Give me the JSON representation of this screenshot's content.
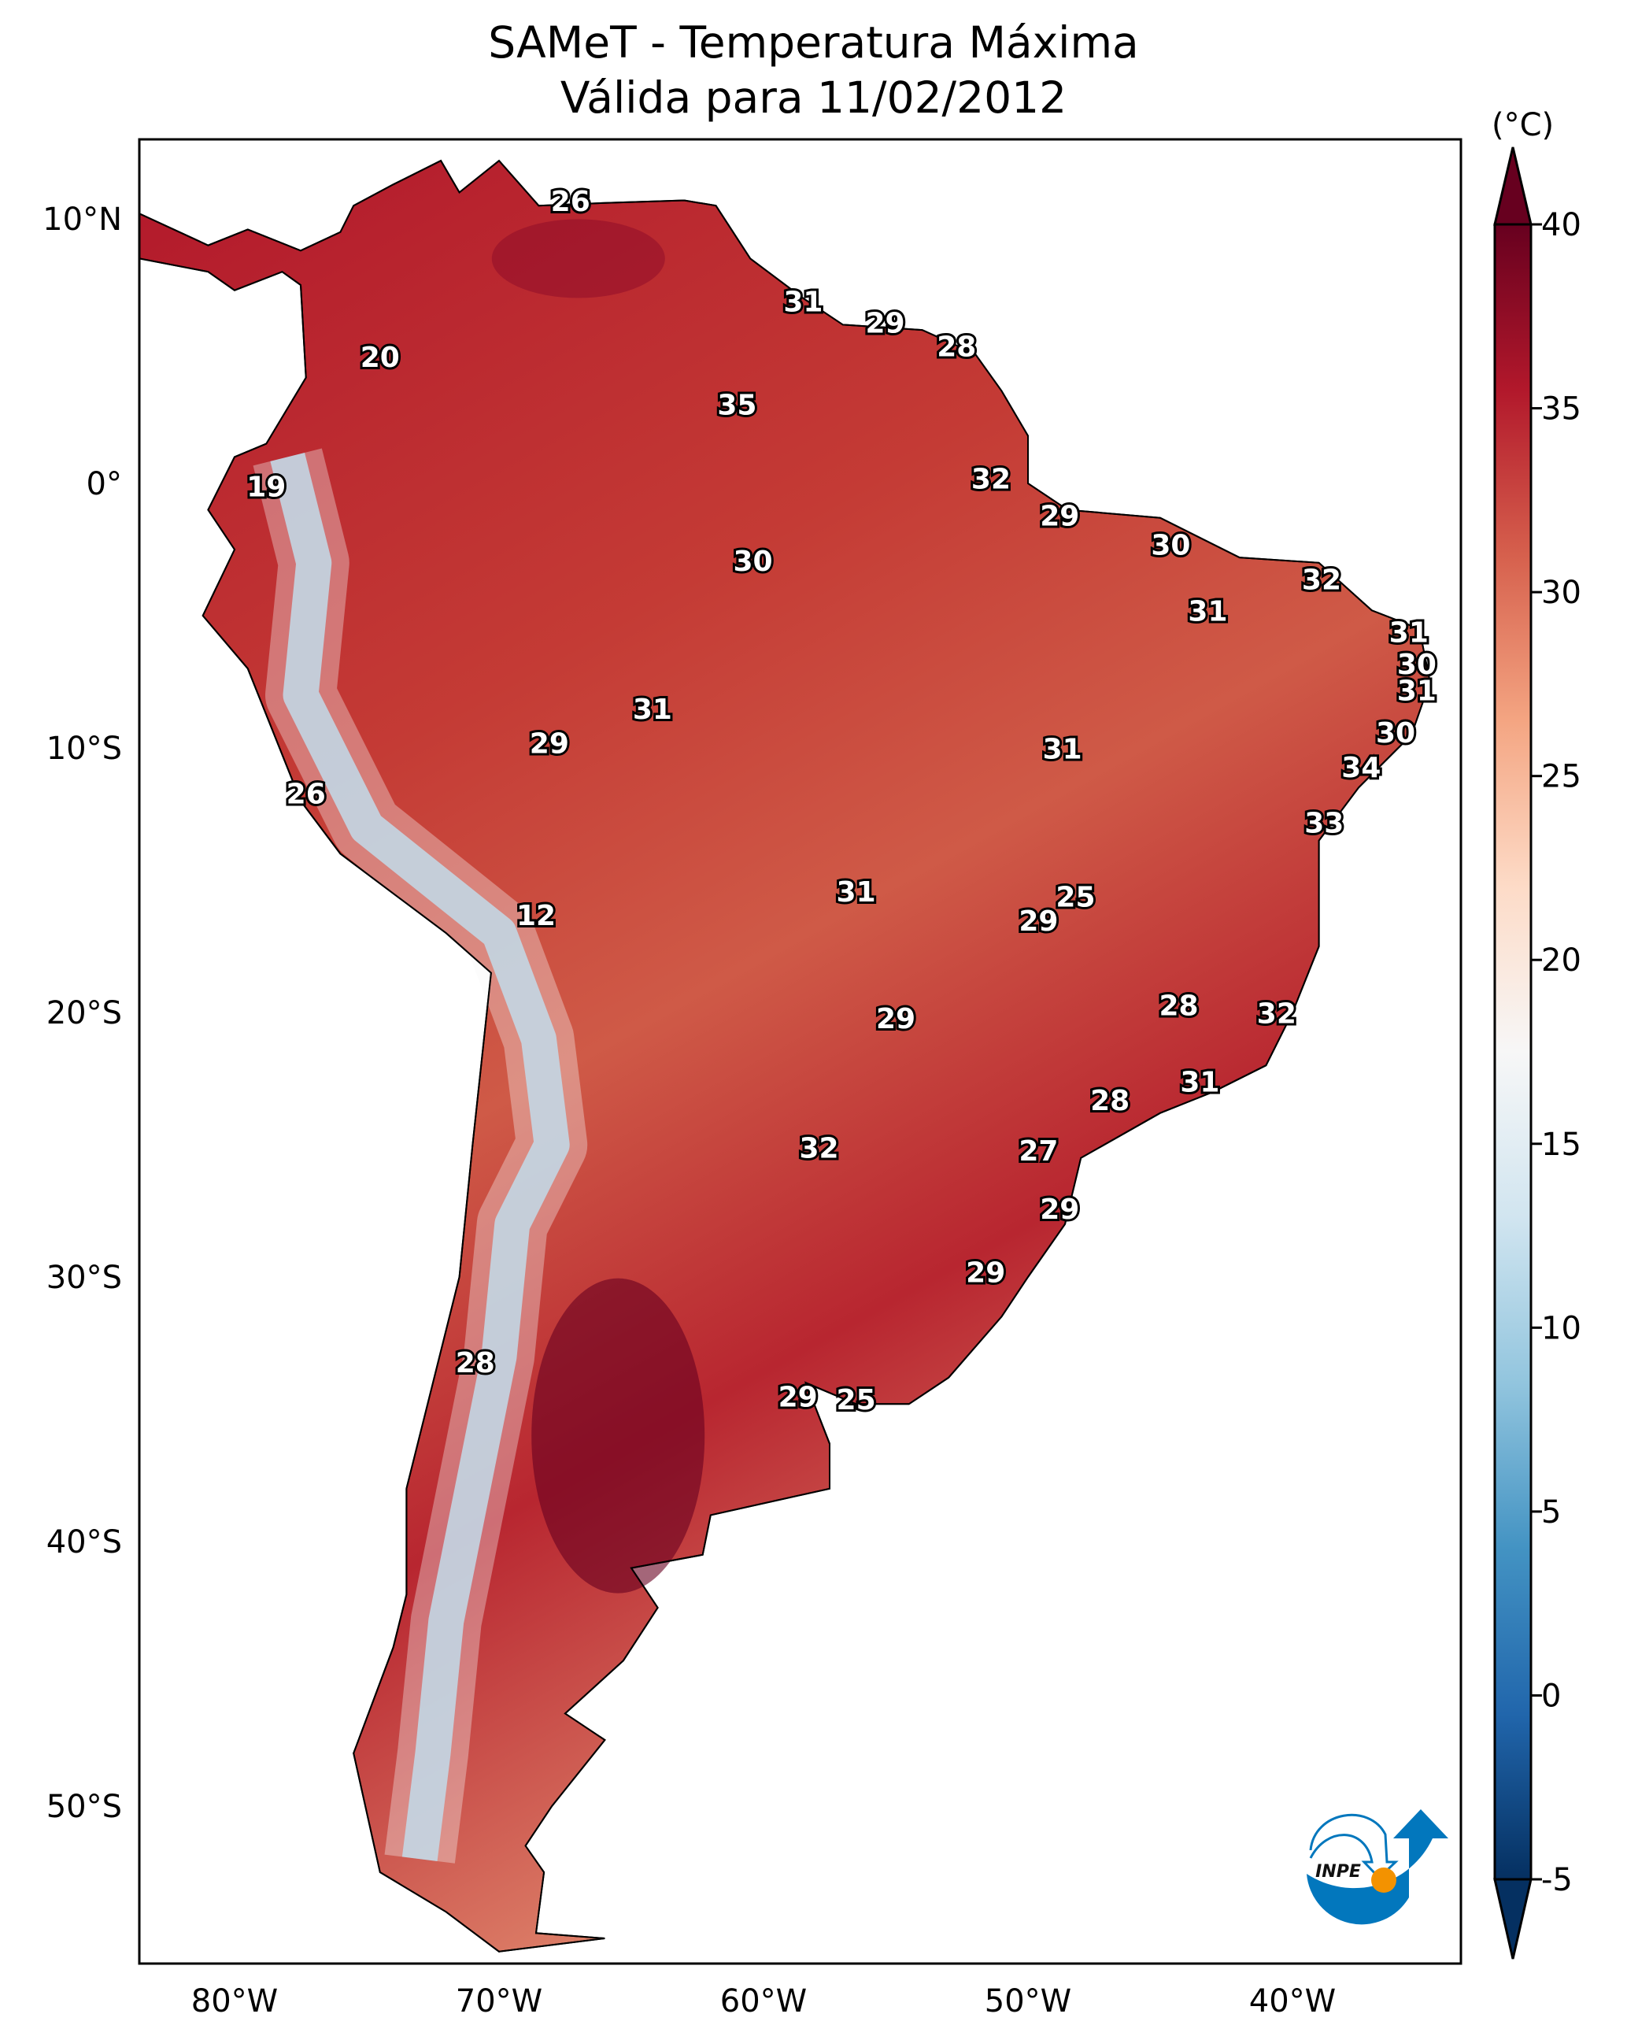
{
  "title": {
    "line1": "SAMeT - Temperatura Máxima",
    "line2": "Válida para 11/02/2012"
  },
  "colorbar": {
    "unit_label": "(°C)",
    "ticks": [
      "40",
      "35",
      "30",
      "25",
      "20",
      "15",
      "10",
      "5",
      "0",
      "-5"
    ],
    "range": [
      -5,
      40
    ],
    "colormap": [
      "#053061",
      "#2166ac",
      "#4393c3",
      "#92c5de",
      "#d1e5f0",
      "#f7f7f7",
      "#fddbc7",
      "#f4a582",
      "#d6604d",
      "#b2182b",
      "#67001f"
    ]
  },
  "axes": {
    "lon_ticks": [
      {
        "v": -80,
        "label": "80°W"
      },
      {
        "v": -70,
        "label": "70°W"
      },
      {
        "v": -60,
        "label": "60°W"
      },
      {
        "v": -50,
        "label": "50°W"
      },
      {
        "v": -40,
        "label": "40°W"
      }
    ],
    "lat_ticks": [
      {
        "v": 10,
        "label": "10°N"
      },
      {
        "v": 0,
        "label": "0°"
      },
      {
        "v": -10,
        "label": "10°S"
      },
      {
        "v": -20,
        "label": "20°S"
      },
      {
        "v": -30,
        "label": "30°S"
      },
      {
        "v": -40,
        "label": "40°S"
      },
      {
        "v": -50,
        "label": "50°S"
      }
    ],
    "lon_range": [
      -83.6,
      -33.6
    ],
    "lat_range": [
      -56,
      13
    ]
  },
  "logo": {
    "text": "INPE",
    "colors": {
      "blue": "#0277bd",
      "orange": "#f39200"
    }
  },
  "station_labels": [
    {
      "t": "26",
      "lon": -67.3,
      "lat": 10.6
    },
    {
      "t": "31",
      "lon": -58.5,
      "lat": 6.8
    },
    {
      "t": "29",
      "lon": -55.4,
      "lat": 6.0
    },
    {
      "t": "28",
      "lon": -52.7,
      "lat": 5.1
    },
    {
      "t": "20",
      "lon": -74.5,
      "lat": 4.7
    },
    {
      "t": "35",
      "lon": -61.0,
      "lat": 2.9
    },
    {
      "t": "32",
      "lon": -51.4,
      "lat": 0.1
    },
    {
      "t": "19",
      "lon": -78.8,
      "lat": -0.2
    },
    {
      "t": "29",
      "lon": -48.8,
      "lat": -1.3
    },
    {
      "t": "30",
      "lon": -44.6,
      "lat": -2.4
    },
    {
      "t": "30",
      "lon": -60.4,
      "lat": -3.0
    },
    {
      "t": "32",
      "lon": -38.9,
      "lat": -3.7
    },
    {
      "t": "31",
      "lon": -43.2,
      "lat": -4.9
    },
    {
      "t": "31",
      "lon": -35.6,
      "lat": -5.7
    },
    {
      "t": "30",
      "lon": -35.3,
      "lat": -6.9
    },
    {
      "t": "31",
      "lon": -35.3,
      "lat": -7.9
    },
    {
      "t": "31",
      "lon": -64.2,
      "lat": -8.6
    },
    {
      "t": "30",
      "lon": -36.1,
      "lat": -9.5
    },
    {
      "t": "29",
      "lon": -68.1,
      "lat": -9.9
    },
    {
      "t": "31",
      "lon": -48.7,
      "lat": -10.1
    },
    {
      "t": "34",
      "lon": -37.4,
      "lat": -10.8
    },
    {
      "t": "26",
      "lon": -77.3,
      "lat": -11.8
    },
    {
      "t": "33",
      "lon": -38.8,
      "lat": -12.9
    },
    {
      "t": "31",
      "lon": -56.5,
      "lat": -15.5
    },
    {
      "t": "25",
      "lon": -48.2,
      "lat": -15.7
    },
    {
      "t": "12",
      "lon": -68.6,
      "lat": -16.4
    },
    {
      "t": "29",
      "lon": -49.6,
      "lat": -16.6
    },
    {
      "t": "28",
      "lon": -44.3,
      "lat": -19.8
    },
    {
      "t": "32",
      "lon": -40.6,
      "lat": -20.1
    },
    {
      "t": "29",
      "lon": -55.0,
      "lat": -20.3
    },
    {
      "t": "31",
      "lon": -43.5,
      "lat": -22.7
    },
    {
      "t": "28",
      "lon": -46.9,
      "lat": -23.4
    },
    {
      "t": "32",
      "lon": -57.9,
      "lat": -25.2
    },
    {
      "t": "27",
      "lon": -49.6,
      "lat": -25.3
    },
    {
      "t": "29",
      "lon": -48.8,
      "lat": -27.5
    },
    {
      "t": "29",
      "lon": -51.6,
      "lat": -29.9
    },
    {
      "t": "28",
      "lon": -70.9,
      "lat": -33.3
    },
    {
      "t": "29",
      "lon": -58.7,
      "lat": -34.6
    },
    {
      "t": "25",
      "lon": -56.5,
      "lat": -34.7
    }
  ]
}
